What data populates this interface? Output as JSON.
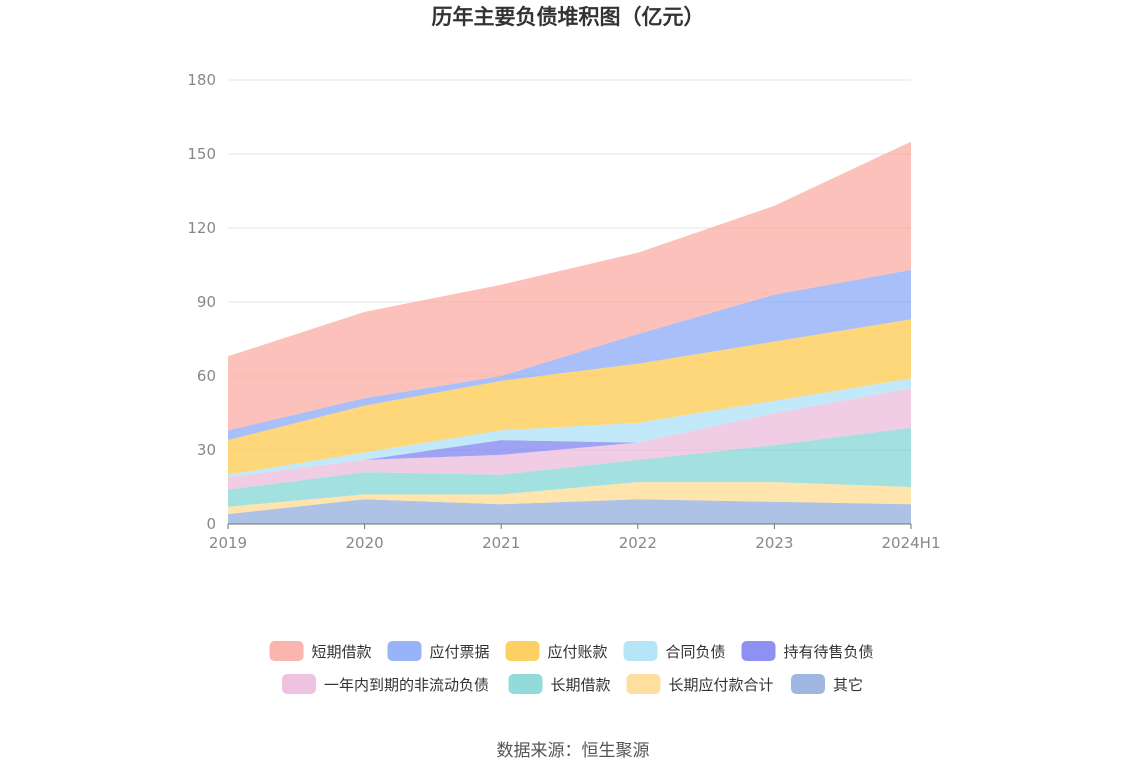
{
  "chart_data": {
    "type": "area",
    "stacked": true,
    "title": "历年主要负债堆积图（亿元）",
    "source": "数据来源：恒生聚源",
    "x": [
      "2019",
      "2020",
      "2021",
      "2022",
      "2023",
      "2024H1"
    ],
    "y_ticks": [
      "0",
      "30",
      "60",
      "90",
      "120",
      "150",
      "180"
    ],
    "ylim": [
      0,
      180
    ],
    "grid": true,
    "legend_position": "bottom",
    "series": [
      {
        "name": "其它",
        "color": "#8eaadb",
        "values": [
          4,
          10,
          8,
          10,
          9,
          8
        ]
      },
      {
        "name": "长期应付款合计",
        "color": "#ffd98f",
        "values": [
          3,
          2,
          4,
          7,
          8,
          7
        ]
      },
      {
        "name": "长期借款",
        "color": "#80d4d4",
        "values": [
          7,
          9,
          8,
          9,
          15,
          24
        ]
      },
      {
        "name": "一年内到期的非流动负债",
        "color": "#ebb8db",
        "values": [
          5,
          5,
          8,
          7,
          13,
          16
        ]
      },
      {
        "name": "持有待售负债",
        "color": "#7b7ef0",
        "values": [
          0,
          0,
          6,
          0,
          0,
          0
        ]
      },
      {
        "name": "合同负债",
        "color": "#a9e0f7",
        "values": [
          1,
          3,
          4,
          8,
          5,
          4
        ]
      },
      {
        "name": "应付账款",
        "color": "#fcc846",
        "values": [
          14,
          19,
          20,
          24,
          24,
          24
        ]
      },
      {
        "name": "应付票据",
        "color": "#86a6f7",
        "values": [
          4,
          3,
          2,
          12,
          19,
          20
        ]
      },
      {
        "name": "短期借款",
        "color": "#f9a9a0",
        "values": [
          30,
          35,
          37,
          33,
          36,
          52
        ]
      }
    ],
    "legend_rows": [
      [
        "短期借款",
        "应付票据",
        "应付账款",
        "合同负债",
        "持有待售负债"
      ],
      [
        "一年内到期的非流动负债",
        "长期借款",
        "长期应付款合计",
        "其它"
      ]
    ]
  }
}
